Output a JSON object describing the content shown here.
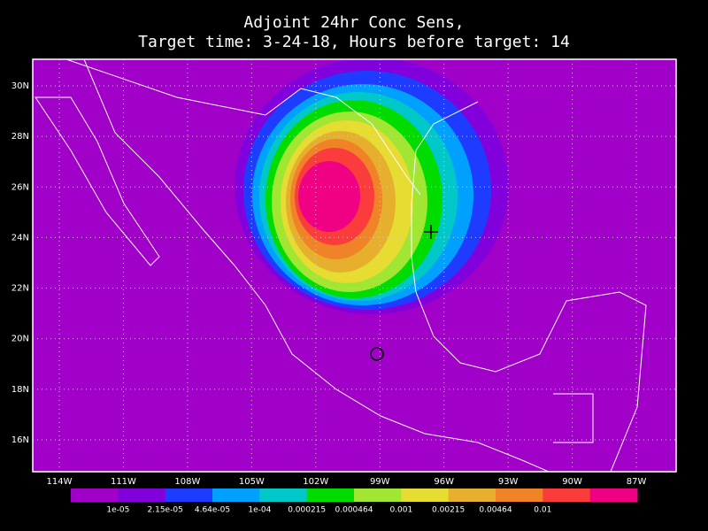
{
  "title": {
    "line1": "Adjoint 24hr Conc Sens,",
    "line2": "Target time: 3-24-18, Hours before target: 14"
  },
  "map": {
    "lon_labels": [
      "114W",
      "111W",
      "108W",
      "105W",
      "102W",
      "99W",
      "96W",
      "93W",
      "90W",
      "87W"
    ],
    "lat_labels": [
      "30N",
      "28N",
      "26N",
      "24N",
      "22N",
      "20N",
      "18N",
      "16N"
    ]
  },
  "colorbar": {
    "colors": [
      "#a000c8",
      "#8200dc",
      "#1e3cff",
      "#00a0ff",
      "#00c8c8",
      "#00dc00",
      "#a0e632",
      "#e6dc32",
      "#e6af2d",
      "#f08228",
      "#fa3c3c",
      "#f00082"
    ],
    "labels": [
      "1e-05",
      "2.15e-05",
      "4.64e-05",
      "1e-04",
      "0.000215",
      "0.000464",
      "0.001",
      "0.00215",
      "0.00464",
      "0.01"
    ]
  }
}
